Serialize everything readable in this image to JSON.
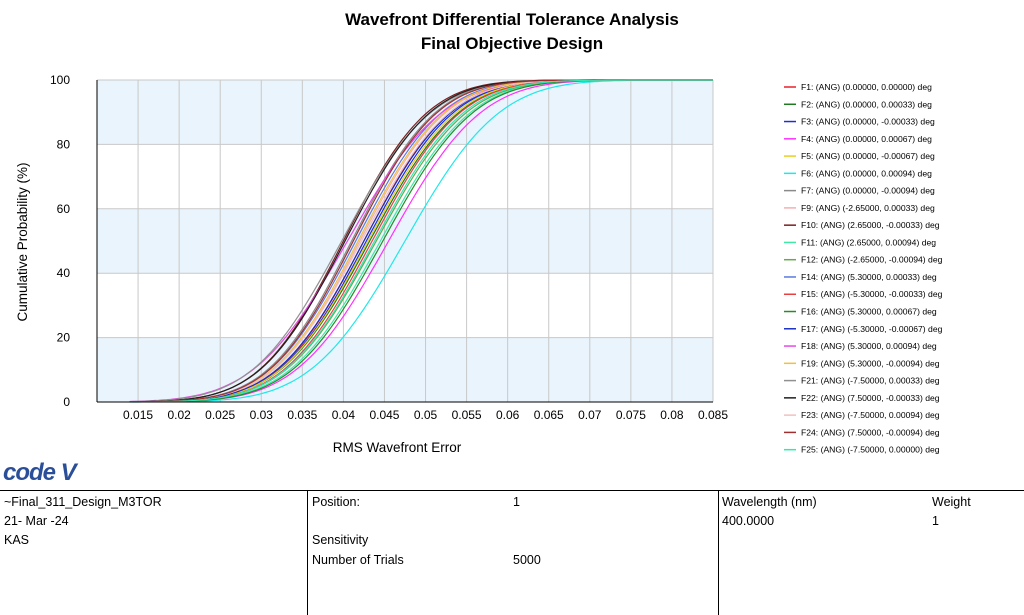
{
  "chart_data": {
    "type": "line",
    "title": "Wavefront Differential Tolerance Analysis",
    "subtitle": "Final Objective Design",
    "xlabel": "RMS Wavefront Error",
    "ylabel": "Cumulative Probability (%)",
    "xlim": [
      0.01,
      0.085
    ],
    "ylim": [
      0,
      100
    ],
    "x_ticks": [
      "0.015",
      "0.02",
      "0.025",
      "0.03",
      "0.035",
      "0.04",
      "0.045",
      "0.05",
      "0.055",
      "0.06",
      "0.065",
      "0.07",
      "0.075",
      "0.08",
      "0.085"
    ],
    "y_ticks": [
      "0",
      "20",
      "40",
      "60",
      "80",
      "100"
    ],
    "grid": true,
    "legend_position": "right",
    "series": [
      {
        "name": "F1: (ANG) (0.00000, 0.00000) deg",
        "color": "#e8202a",
        "mu": 0.0425,
        "sigma": 0.0082
      },
      {
        "name": "F2: (ANG) (0.00000, 0.00033) deg",
        "color": "#1f7a1f",
        "mu": 0.0432,
        "sigma": 0.0085
      },
      {
        "name": "F3: (ANG) (0.00000, -0.00033) deg",
        "color": "#1e2fd0",
        "mu": 0.0428,
        "sigma": 0.0083
      },
      {
        "name": "F4: (ANG) (0.00000, 0.00067) deg",
        "color": "#ff30ff",
        "mu": 0.0455,
        "sigma": 0.0088
      },
      {
        "name": "F5: (ANG) (0.00000, -0.00067) deg",
        "color": "#e8d020",
        "mu": 0.043,
        "sigma": 0.0084
      },
      {
        "name": "F6: (ANG) (0.00000, 0.00094) deg",
        "color": "#20e8e8",
        "mu": 0.0475,
        "sigma": 0.009
      },
      {
        "name": "F7: (ANG) (0.00000, -0.00094) deg",
        "color": "#8a8a8a",
        "mu": 0.041,
        "sigma": 0.008
      },
      {
        "name": "F9: (ANG) (-2.65000, 0.00033) deg",
        "color": "#f4b0b0",
        "mu": 0.042,
        "sigma": 0.0082
      },
      {
        "name": "F10: (ANG) (2.65000, -0.00033) deg",
        "color": "#7a1f1f",
        "mu": 0.04,
        "sigma": 0.008
      },
      {
        "name": "F11: (ANG) (2.65000, 0.00094) deg",
        "color": "#40e8a8",
        "mu": 0.0445,
        "sigma": 0.0086
      },
      {
        "name": "F12: (ANG) (-2.65000, -0.00094) deg",
        "color": "#6aa84f",
        "mu": 0.044,
        "sigma": 0.0086
      },
      {
        "name": "F14: (ANG) (5.30000, 0.00033) deg",
        "color": "#5a7ae0",
        "mu": 0.0415,
        "sigma": 0.0082
      },
      {
        "name": "F15: (ANG) (-5.30000, -0.00033) deg",
        "color": "#e84040",
        "mu": 0.0435,
        "sigma": 0.0084
      },
      {
        "name": "F16: (ANG) (5.30000, 0.00067) deg",
        "color": "#2a8a2a",
        "mu": 0.0448,
        "sigma": 0.0086
      },
      {
        "name": "F17: (ANG) (-5.30000, -0.00067) deg",
        "color": "#1a30c0",
        "mu": 0.0425,
        "sigma": 0.0083
      },
      {
        "name": "F18: (ANG) (5.30000, 0.00094) deg",
        "color": "#e848e8",
        "mu": 0.0405,
        "sigma": 0.009
      },
      {
        "name": "F19: (ANG) (5.30000, -0.00094) deg",
        "color": "#f0c040",
        "mu": 0.0418,
        "sigma": 0.0082
      },
      {
        "name": "F21: (ANG) (-7.50000, 0.00033) deg",
        "color": "#909090",
        "mu": 0.0398,
        "sigma": 0.0085
      },
      {
        "name": "F22: (ANG) (7.50000, -0.00033) deg",
        "color": "#202020",
        "mu": 0.0402,
        "sigma": 0.0081
      },
      {
        "name": "F23: (ANG) (-7.50000, 0.00094) deg",
        "color": "#f0c0c0",
        "mu": 0.0422,
        "sigma": 0.0084
      },
      {
        "name": "F24: (ANG) (7.50000, -0.00094) deg",
        "color": "#a03030",
        "mu": 0.0412,
        "sigma": 0.008
      },
      {
        "name": "F25: (ANG) (-7.50000, 0.00000) deg",
        "color": "#30e8b0",
        "mu": 0.0438,
        "sigma": 0.0085
      }
    ]
  },
  "logo": {
    "text": "code V"
  },
  "info": {
    "design_name": "~Final_311_Design_M3TOR",
    "date": "21- Mar -24",
    "initials": "KAS",
    "position_label": "Position:",
    "position_value": "1",
    "sensitivity_label": "Sensitivity",
    "trials_label": "Number of Trials",
    "trials_value": "5000",
    "wavelength_label": "Wavelength (nm)",
    "weight_label": "Weight",
    "wavelength_value": "400.0000",
    "weight_value": "1"
  }
}
